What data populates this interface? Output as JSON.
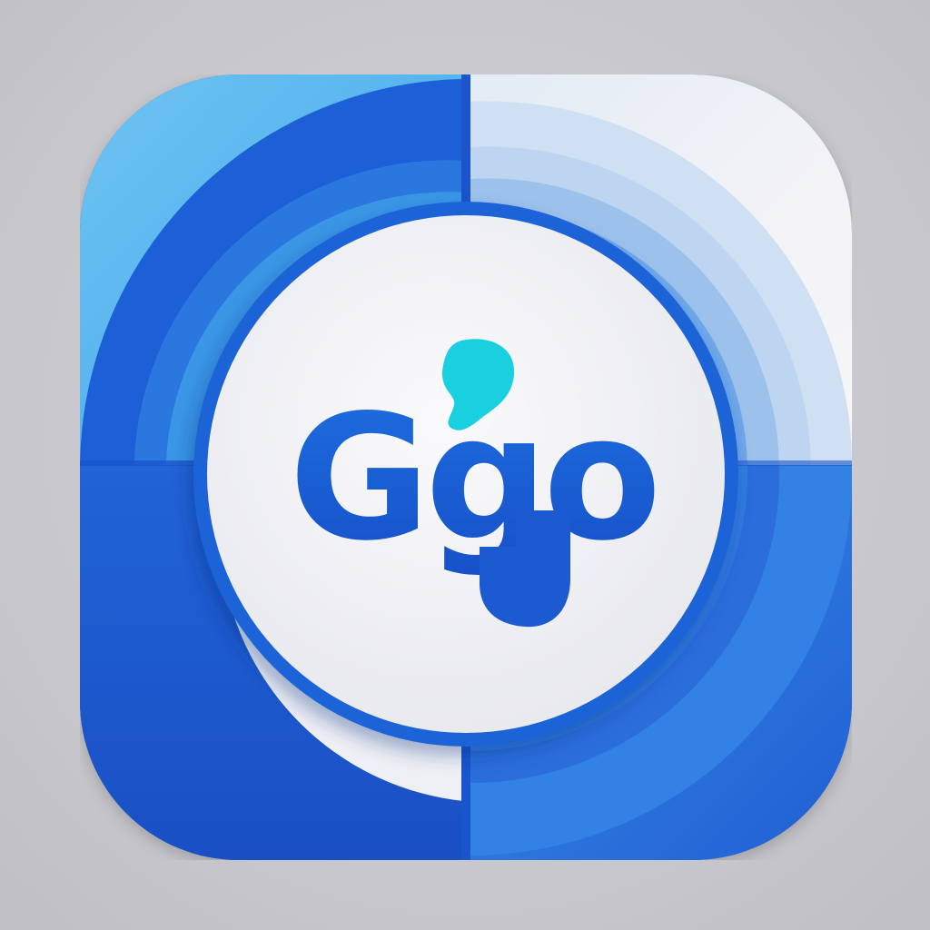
{
  "icon": {
    "name": "Ggo app icon",
    "wordmark": "Ggo",
    "colors": {
      "background": "#c9c9ce",
      "deep_blue": "#1b57cf",
      "mid_blue": "#2f7ce6",
      "light_blue": "#58b6ee",
      "pale_blue": "#bcd6f1",
      "off_white": "#f1f1f4",
      "disc_white": "#f2f2f5",
      "dot_cyan": "#14d2e0",
      "letter_blue": "#1c63d6"
    }
  }
}
